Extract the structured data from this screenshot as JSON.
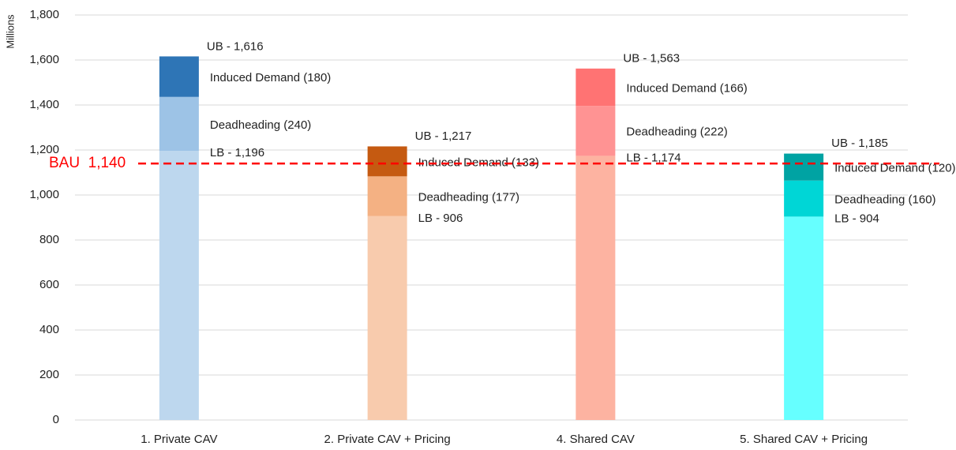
{
  "chart_data": {
    "type": "stacked_bar",
    "y_axis_label": "Millions",
    "categories": [
      "1. Private CAV",
      "2. Private CAV + Pricing",
      "4. Shared CAV",
      "5. Shared CAV + Pricing"
    ],
    "series": [
      {
        "values": [
          1196,
          906,
          1174,
          904
        ],
        "value_labels": [
          "LB - 1,196",
          "LB - 906",
          "LB - 1,174",
          "LB - 904"
        ],
        "colors": [
          "#bdd7ee",
          "#f8cbad",
          "#fdb3a1",
          "#66ffff"
        ]
      },
      {
        "values": [
          240,
          177,
          222,
          160
        ],
        "value_labels": [
          "Deadheading (240)",
          "Deadheading (177)",
          "Deadheading (222)",
          "Deadheading (160)"
        ],
        "colors": [
          "#9dc3e6",
          "#f4b183",
          "#ff9393",
          "#00d6d6"
        ]
      },
      {
        "values": [
          180,
          133,
          166,
          120
        ],
        "value_labels": [
          "Induced Demand (180)",
          "Induced Demand (133)",
          "Induced Demand (166)",
          "Induced Demand (120)"
        ],
        "colors": [
          "#2e75b6",
          "#c55a11",
          "#ff7373",
          "#00a3a3"
        ]
      }
    ],
    "totals": {
      "values": [
        1616,
        1217,
        1563,
        1185
      ],
      "value_labels": [
        "UB - 1,616",
        "UB - 1,217",
        "UB - 1,563",
        "UB - 1,185"
      ]
    },
    "reference_line": {
      "value": 1140,
      "label": "BAU  1,140",
      "color": "#ff0000"
    },
    "ylim": [
      0,
      1800
    ],
    "yticks": [
      0,
      200,
      400,
      600,
      800,
      {
        "value": 1000,
        "label": "1,000"
      },
      {
        "value": 1200,
        "label": "1,200"
      },
      {
        "value": 1400,
        "label": "1,400"
      },
      {
        "value": 1600,
        "label": "1,600"
      },
      {
        "value": 1800,
        "label": "1,800"
      }
    ],
    "grid": true
  }
}
